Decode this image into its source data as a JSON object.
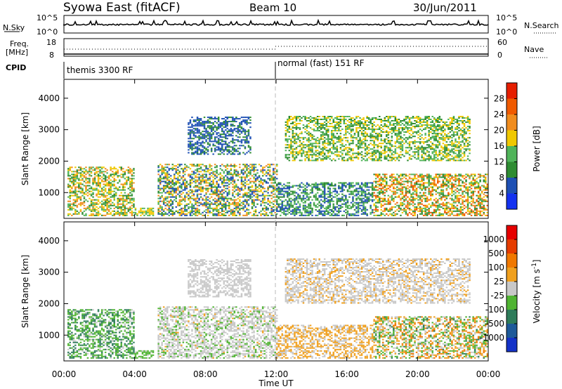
{
  "header": {
    "station": "Syowa East (fitACF)",
    "beam": "Beam 10",
    "date": "30/Jun/2011"
  },
  "noise_panel": {
    "left_label": "N.Sky",
    "right_label": "N.Search",
    "ytick_top": "10^5",
    "ytick_bottom": "10^0"
  },
  "freq_panel": {
    "left_label_line1": "Freq.",
    "left_label_line2": "[MHz]",
    "left_ticks": [
      "18",
      "8"
    ],
    "right_label": "Nave",
    "right_ticks": [
      "60",
      "0"
    ]
  },
  "cpid_panel": {
    "label": "CPID",
    "modes": [
      "themis 3300 RF",
      "normal (fast) 151 RF"
    ]
  },
  "colors": {
    "power_scale": [
      "#1432f0",
      "#1e50b4",
      "#2e8c32",
      "#50b45a",
      "#f0c800",
      "#f08c1e",
      "#f05a00",
      "#e61e00"
    ],
    "velocity_scale": [
      "#1432c8",
      "#1e5a9a",
      "#2e7c5a",
      "#50b432",
      "#c8c8c8",
      "#f0a01e",
      "#f07800",
      "#e63c00",
      "#e60000"
    ]
  },
  "chart_data": [
    {
      "type": "heatmap",
      "panel": "power",
      "ylabel": "Slant Range [km]",
      "colorbar_label": "Power [dB]",
      "colorbar_ticks": [
        "28",
        "24",
        "20",
        "16",
        "12",
        "8",
        "4"
      ],
      "colorbar_range": [
        0,
        32
      ],
      "yticks": [
        "4000",
        "3000",
        "2000",
        "1000"
      ],
      "ylim": [
        180,
        4600
      ],
      "xlim": [
        0,
        24
      ],
      "regions": [
        {
          "t": [
            0.2,
            4.0
          ],
          "r": [
            250,
            1800
          ],
          "level": [
            8,
            24
          ]
        },
        {
          "t": [
            4.0,
            5.0
          ],
          "r": [
            250,
            500
          ],
          "level": [
            12,
            20
          ]
        },
        {
          "t": [
            5.3,
            12.0
          ],
          "r": [
            250,
            1900
          ],
          "level": [
            4,
            24
          ]
        },
        {
          "t": [
            7.0,
            10.5
          ],
          "r": [
            2200,
            3400
          ],
          "level": [
            4,
            10
          ]
        },
        {
          "t": [
            12.0,
            17.5
          ],
          "r": [
            250,
            1300
          ],
          "level": [
            4,
            16
          ]
        },
        {
          "t": [
            17.5,
            24.0
          ],
          "r": [
            250,
            1600
          ],
          "level": [
            8,
            28
          ]
        },
        {
          "t": [
            12.5,
            23.0
          ],
          "r": [
            2000,
            3400
          ],
          "level": [
            8,
            20
          ]
        }
      ]
    },
    {
      "type": "heatmap",
      "panel": "velocity",
      "ylabel": "Slant Range [km]",
      "colorbar_label": "Velocity [m s^-1]",
      "colorbar_ticks": [
        "1000",
        "500",
        "100",
        "25",
        "-25",
        "-100",
        "-500",
        "-1000"
      ],
      "colorbar_range": [
        -1200,
        1200
      ],
      "yticks": [
        "4000",
        "3000",
        "2000",
        "1000"
      ],
      "ylim": [
        180,
        4600
      ],
      "xlim": [
        0,
        24
      ],
      "xticks": [
        "00:00",
        "04:00",
        "08:00",
        "12:00",
        "16:00",
        "20:00",
        "00:00"
      ],
      "xlabel": "Time UT",
      "regions": [
        {
          "t": [
            0.2,
            4.0
          ],
          "r": [
            250,
            1800
          ],
          "level": [
            -600,
            -50
          ]
        },
        {
          "t": [
            4.0,
            5.0
          ],
          "r": [
            250,
            500
          ],
          "level": [
            -300,
            -50
          ]
        },
        {
          "t": [
            5.3,
            12.0
          ],
          "r": [
            250,
            1900
          ],
          "level": [
            -200,
            150
          ]
        },
        {
          "t": [
            7.0,
            10.5
          ],
          "r": [
            2200,
            3400
          ],
          "level": [
            -100,
            100
          ]
        },
        {
          "t": [
            12.0,
            17.5
          ],
          "r": [
            250,
            1300
          ],
          "level": [
            25,
            300
          ]
        },
        {
          "t": [
            17.5,
            24.0
          ],
          "r": [
            250,
            1600
          ],
          "level": [
            -500,
            600
          ]
        },
        {
          "t": [
            12.5,
            23.0
          ],
          "r": [
            2000,
            3400
          ],
          "level": [
            -100,
            200
          ]
        }
      ]
    }
  ]
}
